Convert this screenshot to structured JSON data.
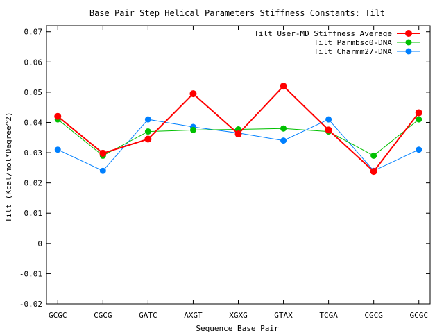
{
  "chart_data": {
    "type": "line",
    "title": "Base Pair Step Helical Parameters Stiffness Constants: Tilt",
    "xlabel": "Sequence Base Pair",
    "ylabel": "Tilt (Kcal/mol*Degree^2)",
    "categories": [
      "GCGC",
      "CGCG",
      "GATC",
      "AXGT",
      "XGXG",
      "GTAX",
      "TCGA",
      "CGCG",
      "GCGC"
    ],
    "ylim": [
      -0.02,
      0.072
    ],
    "yticks": [
      -0.02,
      -0.01,
      0,
      0.01,
      0.02,
      0.03,
      0.04,
      0.05,
      0.06,
      0.07
    ],
    "ytick_labels": [
      "-0.02",
      "-0.01",
      "0",
      "0.01",
      "0.02",
      "0.03",
      "0.04",
      "0.05",
      "0.06",
      "0.07"
    ],
    "legend_position": "top-right",
    "grid": false,
    "series": [
      {
        "name": "Tilt User-MD Stiffness Average",
        "color": "#ff0000",
        "values": [
          0.042,
          0.0298,
          0.0345,
          0.0495,
          0.0362,
          0.052,
          0.0375,
          0.0238,
          0.0432
        ]
      },
      {
        "name": "Tilt Parmbsc0-DNA",
        "color": "#00c000",
        "values": [
          0.041,
          0.029,
          0.037,
          0.0375,
          0.0377,
          0.038,
          0.037,
          0.029,
          0.041
        ]
      },
      {
        "name": "Tilt Charmm27-DNA",
        "color": "#0080ff",
        "values": [
          0.031,
          0.024,
          0.041,
          0.0385,
          0.0365,
          0.034,
          0.041,
          0.024,
          0.031
        ]
      }
    ]
  }
}
